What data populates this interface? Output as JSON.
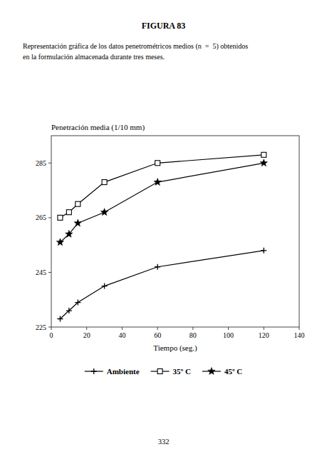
{
  "title": "FIGURA 83",
  "description": [
    "Representación gráfica de los datos penetrométricos medios (n  =  5) obtenidos",
    "en la formulación almacenada durante tres meses."
  ],
  "page_number": "332",
  "chart_data": {
    "type": "line",
    "title": "Penetración media (1/10 mm)",
    "x_label": "Tiempo (seg.)",
    "x": [
      5,
      10,
      15,
      30,
      60,
      120
    ],
    "series": [
      {
        "name": "Ambiente",
        "color": "#000000",
        "marker": "plus",
        "values": [
          228,
          231,
          234,
          240,
          247,
          253
        ]
      },
      {
        "name": "35º C",
        "color": "#000000",
        "marker": "square",
        "values": [
          265,
          267,
          270,
          278,
          285,
          288
        ]
      },
      {
        "name": "45º C",
        "color": "#000000",
        "marker": "star",
        "values": [
          256,
          259,
          263,
          267,
          278,
          285
        ]
      }
    ],
    "xlim": [
      0,
      140
    ],
    "ylim": [
      225,
      295
    ],
    "xticks": [
      0,
      20,
      40,
      60,
      80,
      100,
      120,
      140
    ],
    "yticks": [
      225,
      245,
      265,
      285
    ],
    "grid": false,
    "legend": "bottom"
  }
}
